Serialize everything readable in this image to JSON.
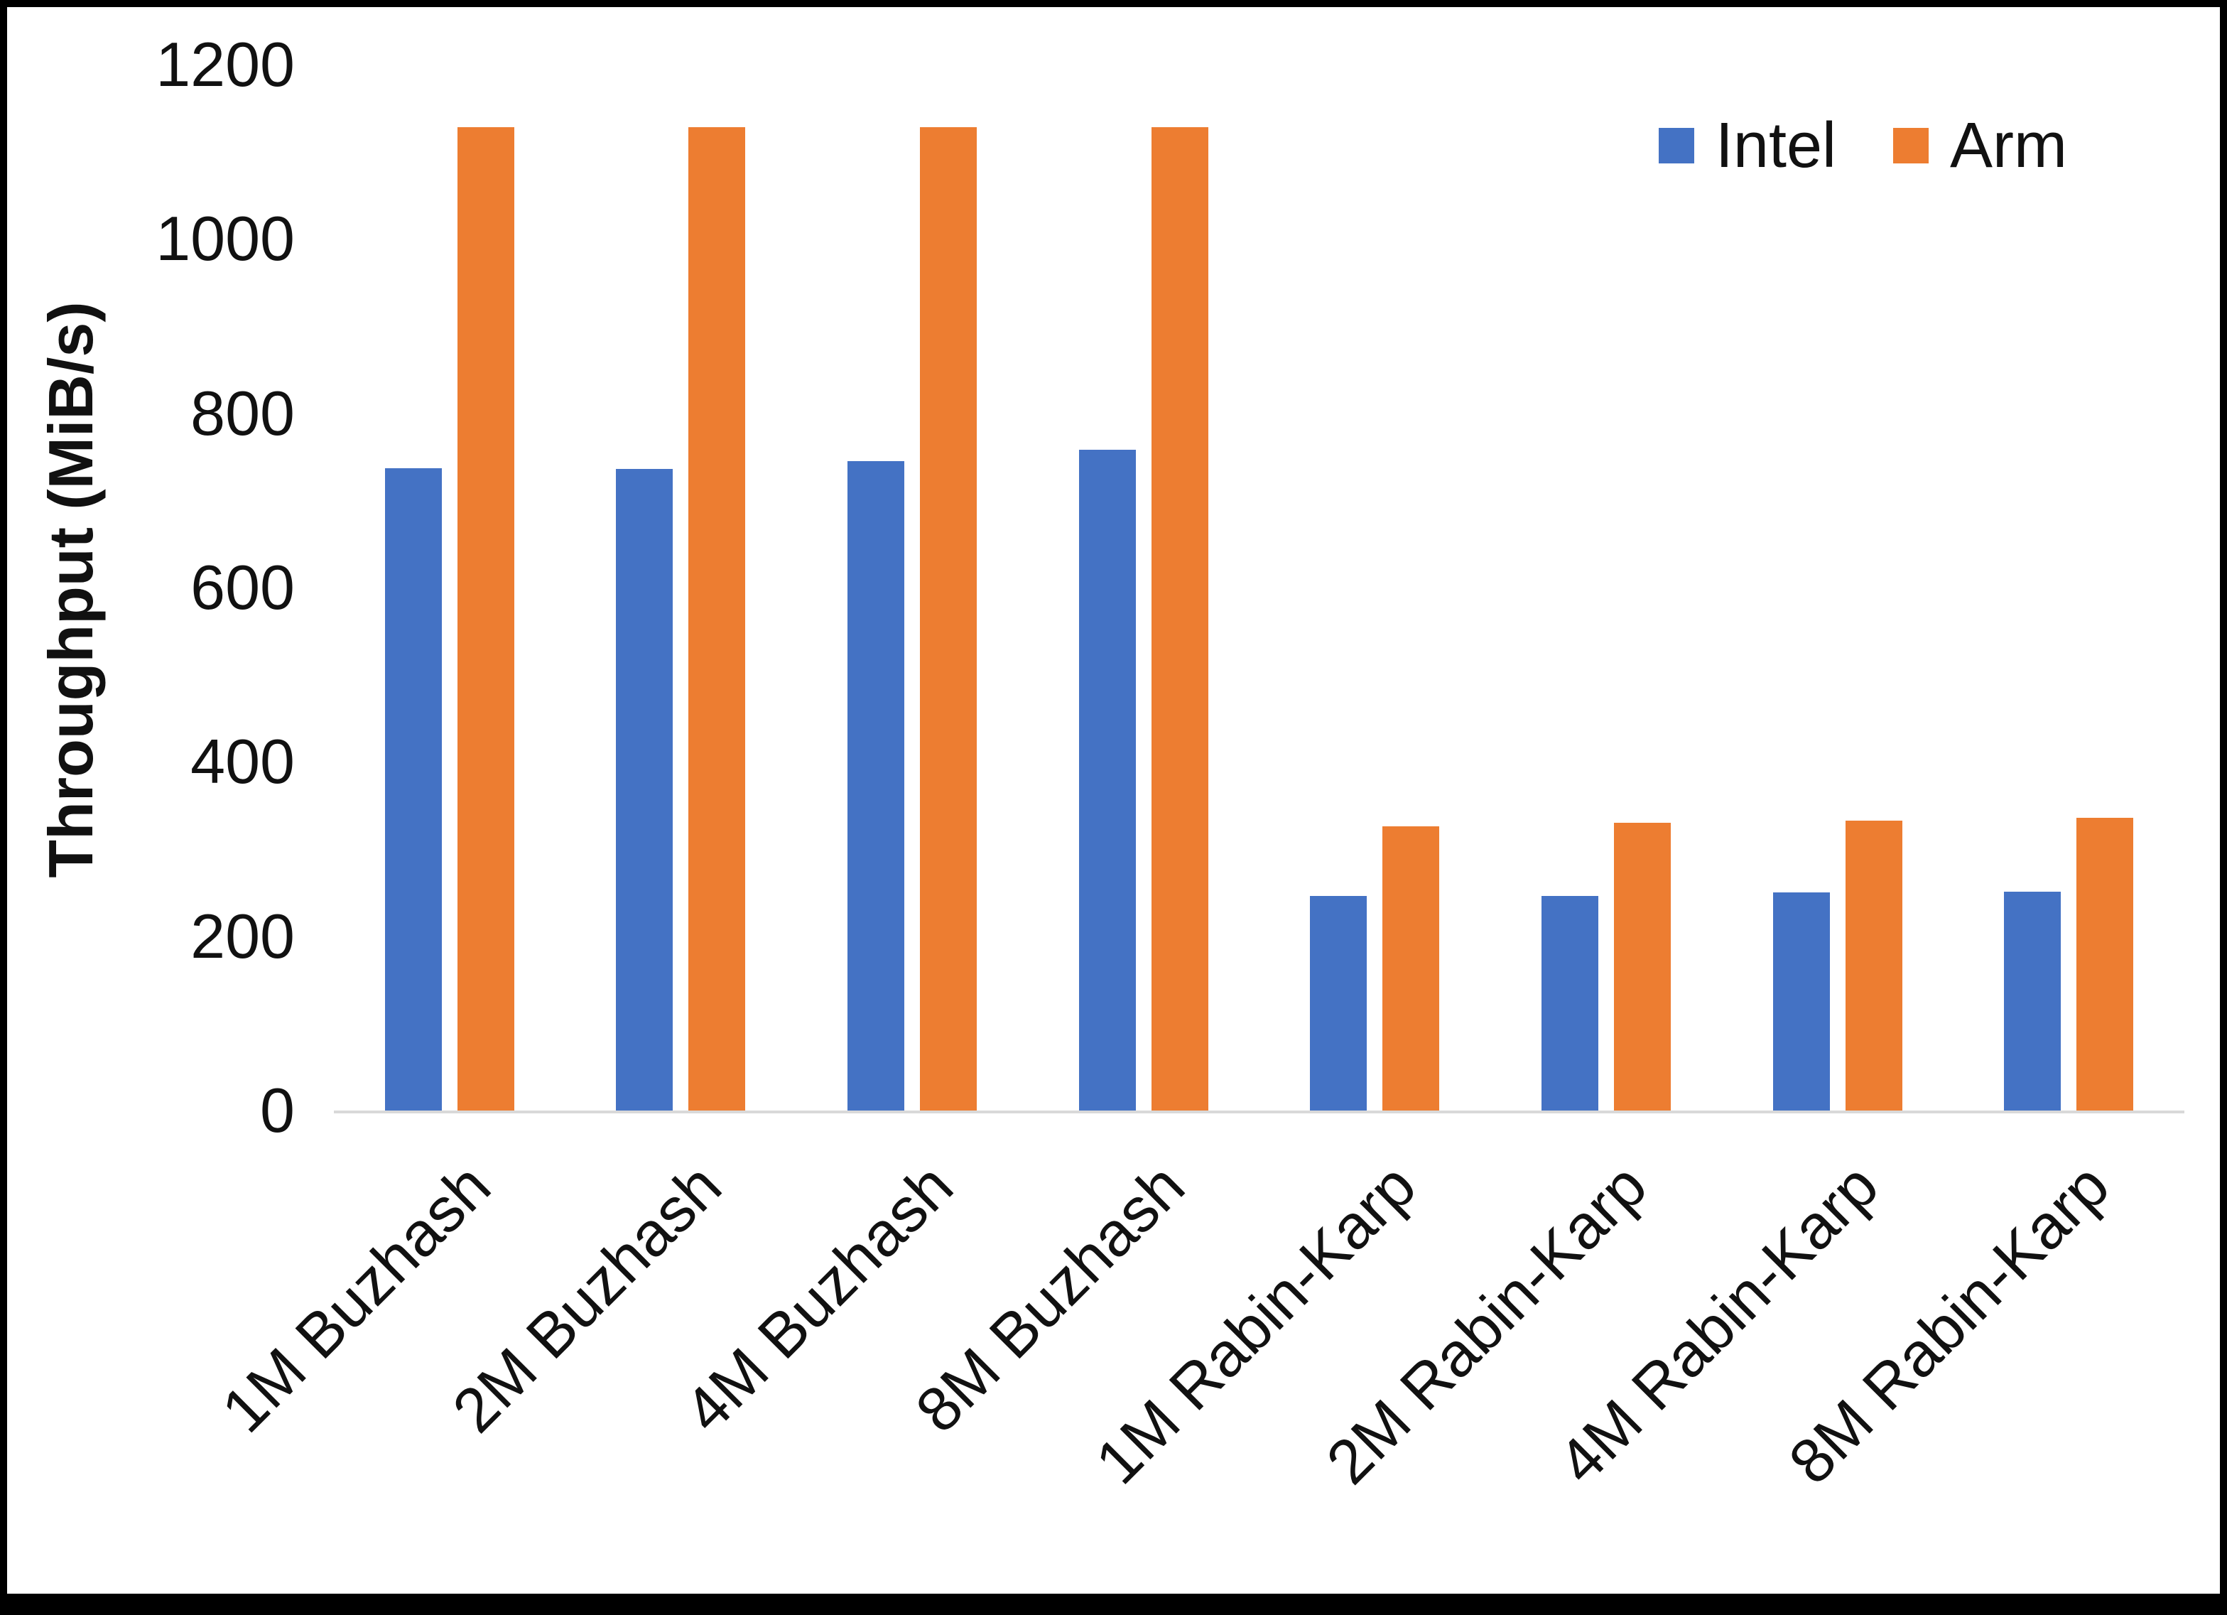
{
  "chart_data": {
    "type": "bar",
    "title": "",
    "xlabel": "",
    "ylabel": "Throughput (MiB/s)",
    "ylim": [
      0,
      1200
    ],
    "yticks": [
      0,
      200,
      400,
      600,
      800,
      1000,
      1200
    ],
    "grid": false,
    "legend_position": "top-right",
    "categories": [
      "1M Buzhash",
      "2M Buzhash",
      "4M Buzhash",
      "8M Buzhash",
      "1M Rabin-Karp",
      "2M Rabin-Karp",
      "4M Rabin-Karp",
      "8M Rabin-Karp"
    ],
    "series": [
      {
        "name": "Intel",
        "color": "#4472C4",
        "values": [
          737,
          736,
          745,
          758,
          246,
          246,
          250,
          251
        ]
      },
      {
        "name": "Arm",
        "color": "#ED7D31",
        "values": [
          1128,
          1128,
          1128,
          1128,
          326,
          330,
          333,
          336
        ]
      }
    ]
  }
}
